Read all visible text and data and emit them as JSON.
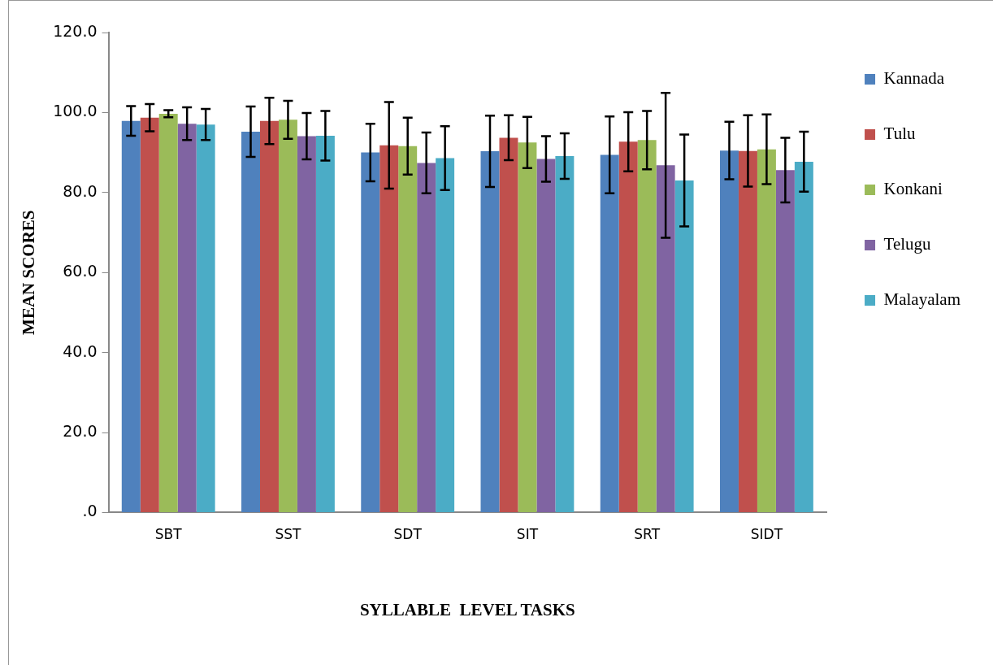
{
  "chart_data": {
    "type": "bar",
    "xlabel": "SYLLABLE  LEVEL TASKS",
    "ylabel": "MEAN SCORES",
    "categories": [
      "SBT",
      "SST",
      "SDT",
      "SIT",
      "SRT",
      "SIDT"
    ],
    "series": [
      {
        "name": "Kannada",
        "color": "#4f81bd",
        "values": [
          97.9,
          95.2,
          90.0,
          90.3,
          89.4,
          90.5
        ],
        "errors": [
          3.7,
          6.3,
          7.2,
          8.9,
          9.6,
          7.2
        ]
      },
      {
        "name": "Tulu",
        "color": "#c0504d",
        "values": [
          98.7,
          97.9,
          91.8,
          93.7,
          92.7,
          90.4
        ],
        "errors": [
          3.4,
          5.8,
          10.8,
          5.6,
          7.4,
          8.9
        ]
      },
      {
        "name": "Konkani",
        "color": "#9bbb59",
        "values": [
          99.7,
          98.2,
          91.6,
          92.5,
          93.1,
          90.8
        ],
        "errors": [
          0.9,
          4.75,
          7.1,
          6.4,
          7.3,
          8.7
        ]
      },
      {
        "name": "Telugu",
        "color": "#8064a2",
        "values": [
          97.2,
          94.1,
          87.4,
          88.4,
          86.8,
          85.6
        ],
        "errors": [
          4.1,
          5.8,
          7.6,
          5.7,
          18.1,
          8.1
        ]
      },
      {
        "name": "Malayalam",
        "color": "#4bacc6",
        "values": [
          97.0,
          94.2,
          88.6,
          89.1,
          83.0,
          87.7
        ],
        "errors": [
          3.9,
          6.2,
          8.0,
          5.7,
          11.5,
          7.5
        ]
      }
    ],
    "ylim": [
      0,
      120
    ],
    "yticks": [
      {
        "value": 0,
        "label": ".0"
      },
      {
        "value": 20,
        "label": "20.0"
      },
      {
        "value": 40,
        "label": "40.0"
      },
      {
        "value": 60,
        "label": "60.0"
      },
      {
        "value": 80,
        "label": "80.0"
      },
      {
        "value": 100,
        "label": "100.0"
      },
      {
        "value": 120,
        "label": "120.0"
      }
    ],
    "grid": false,
    "legend": "right"
  }
}
